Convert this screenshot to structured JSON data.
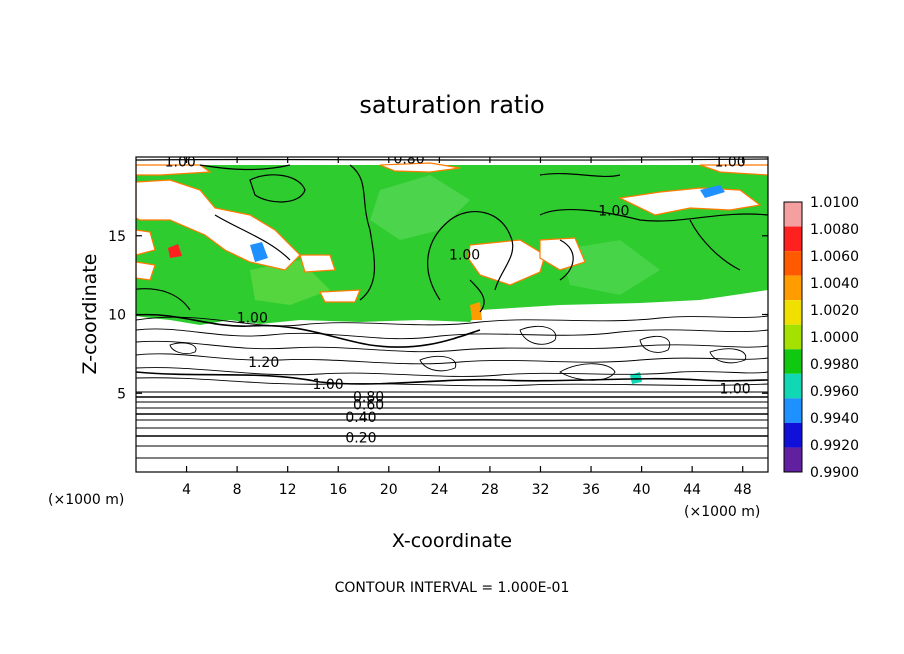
{
  "chart_data": {
    "type": "heatmap",
    "title": "saturation ratio",
    "xlabel": "X-coordinate",
    "ylabel": "Z-coordinate",
    "x_unit": "(×1000 m)",
    "z_unit": "(×1000 m)",
    "xlim": [
      0,
      50
    ],
    "ylim": [
      0,
      20
    ],
    "x_ticks": [
      4,
      8,
      12,
      16,
      20,
      24,
      28,
      32,
      36,
      40,
      44,
      48
    ],
    "y_ticks": [
      5,
      10,
      15
    ],
    "footer": "CONTOUR INTERVAL = 1.000E-01",
    "colorbar": {
      "levels": [
        "1.0100",
        "1.0080",
        "1.0060",
        "1.0040",
        "1.0020",
        "1.0000",
        "0.9980",
        "0.9960",
        "0.9940",
        "0.9920",
        "0.9900"
      ],
      "colors": [
        "#f4a0a0",
        "#ff2020",
        "#ff5a00",
        "#ff9c00",
        "#f0e000",
        "#a4e000",
        "#10c810",
        "#10d8b4",
        "#1e90ff",
        "#1010d8",
        "#6020a0"
      ]
    },
    "contour_labels": [
      {
        "text": "1.00",
        "x": 3.5,
        "z": 19.7
      },
      {
        "text": "0.80",
        "x": 21.6,
        "z": 19.9
      },
      {
        "text": "1.00",
        "x": 47.0,
        "z": 19.7
      },
      {
        "text": "1.00",
        "x": 37.8,
        "z": 16.6
      },
      {
        "text": "1.00",
        "x": 26.0,
        "z": 13.8
      },
      {
        "text": "1.00",
        "x": 9.2,
        "z": 9.8
      },
      {
        "text": "1.20",
        "x": 10.1,
        "z": 7.0
      },
      {
        "text": "1.00",
        "x": 15.2,
        "z": 5.6
      },
      {
        "text": "1.00",
        "x": 47.4,
        "z": 5.3
      },
      {
        "text": "0.80",
        "x": 18.4,
        "z": 4.8
      },
      {
        "text": "0.60",
        "x": 18.4,
        "z": 4.3
      },
      {
        "text": "0.40",
        "x": 17.8,
        "z": 3.5
      },
      {
        "text": "0.20",
        "x": 17.8,
        "z": 2.2
      }
    ]
  }
}
